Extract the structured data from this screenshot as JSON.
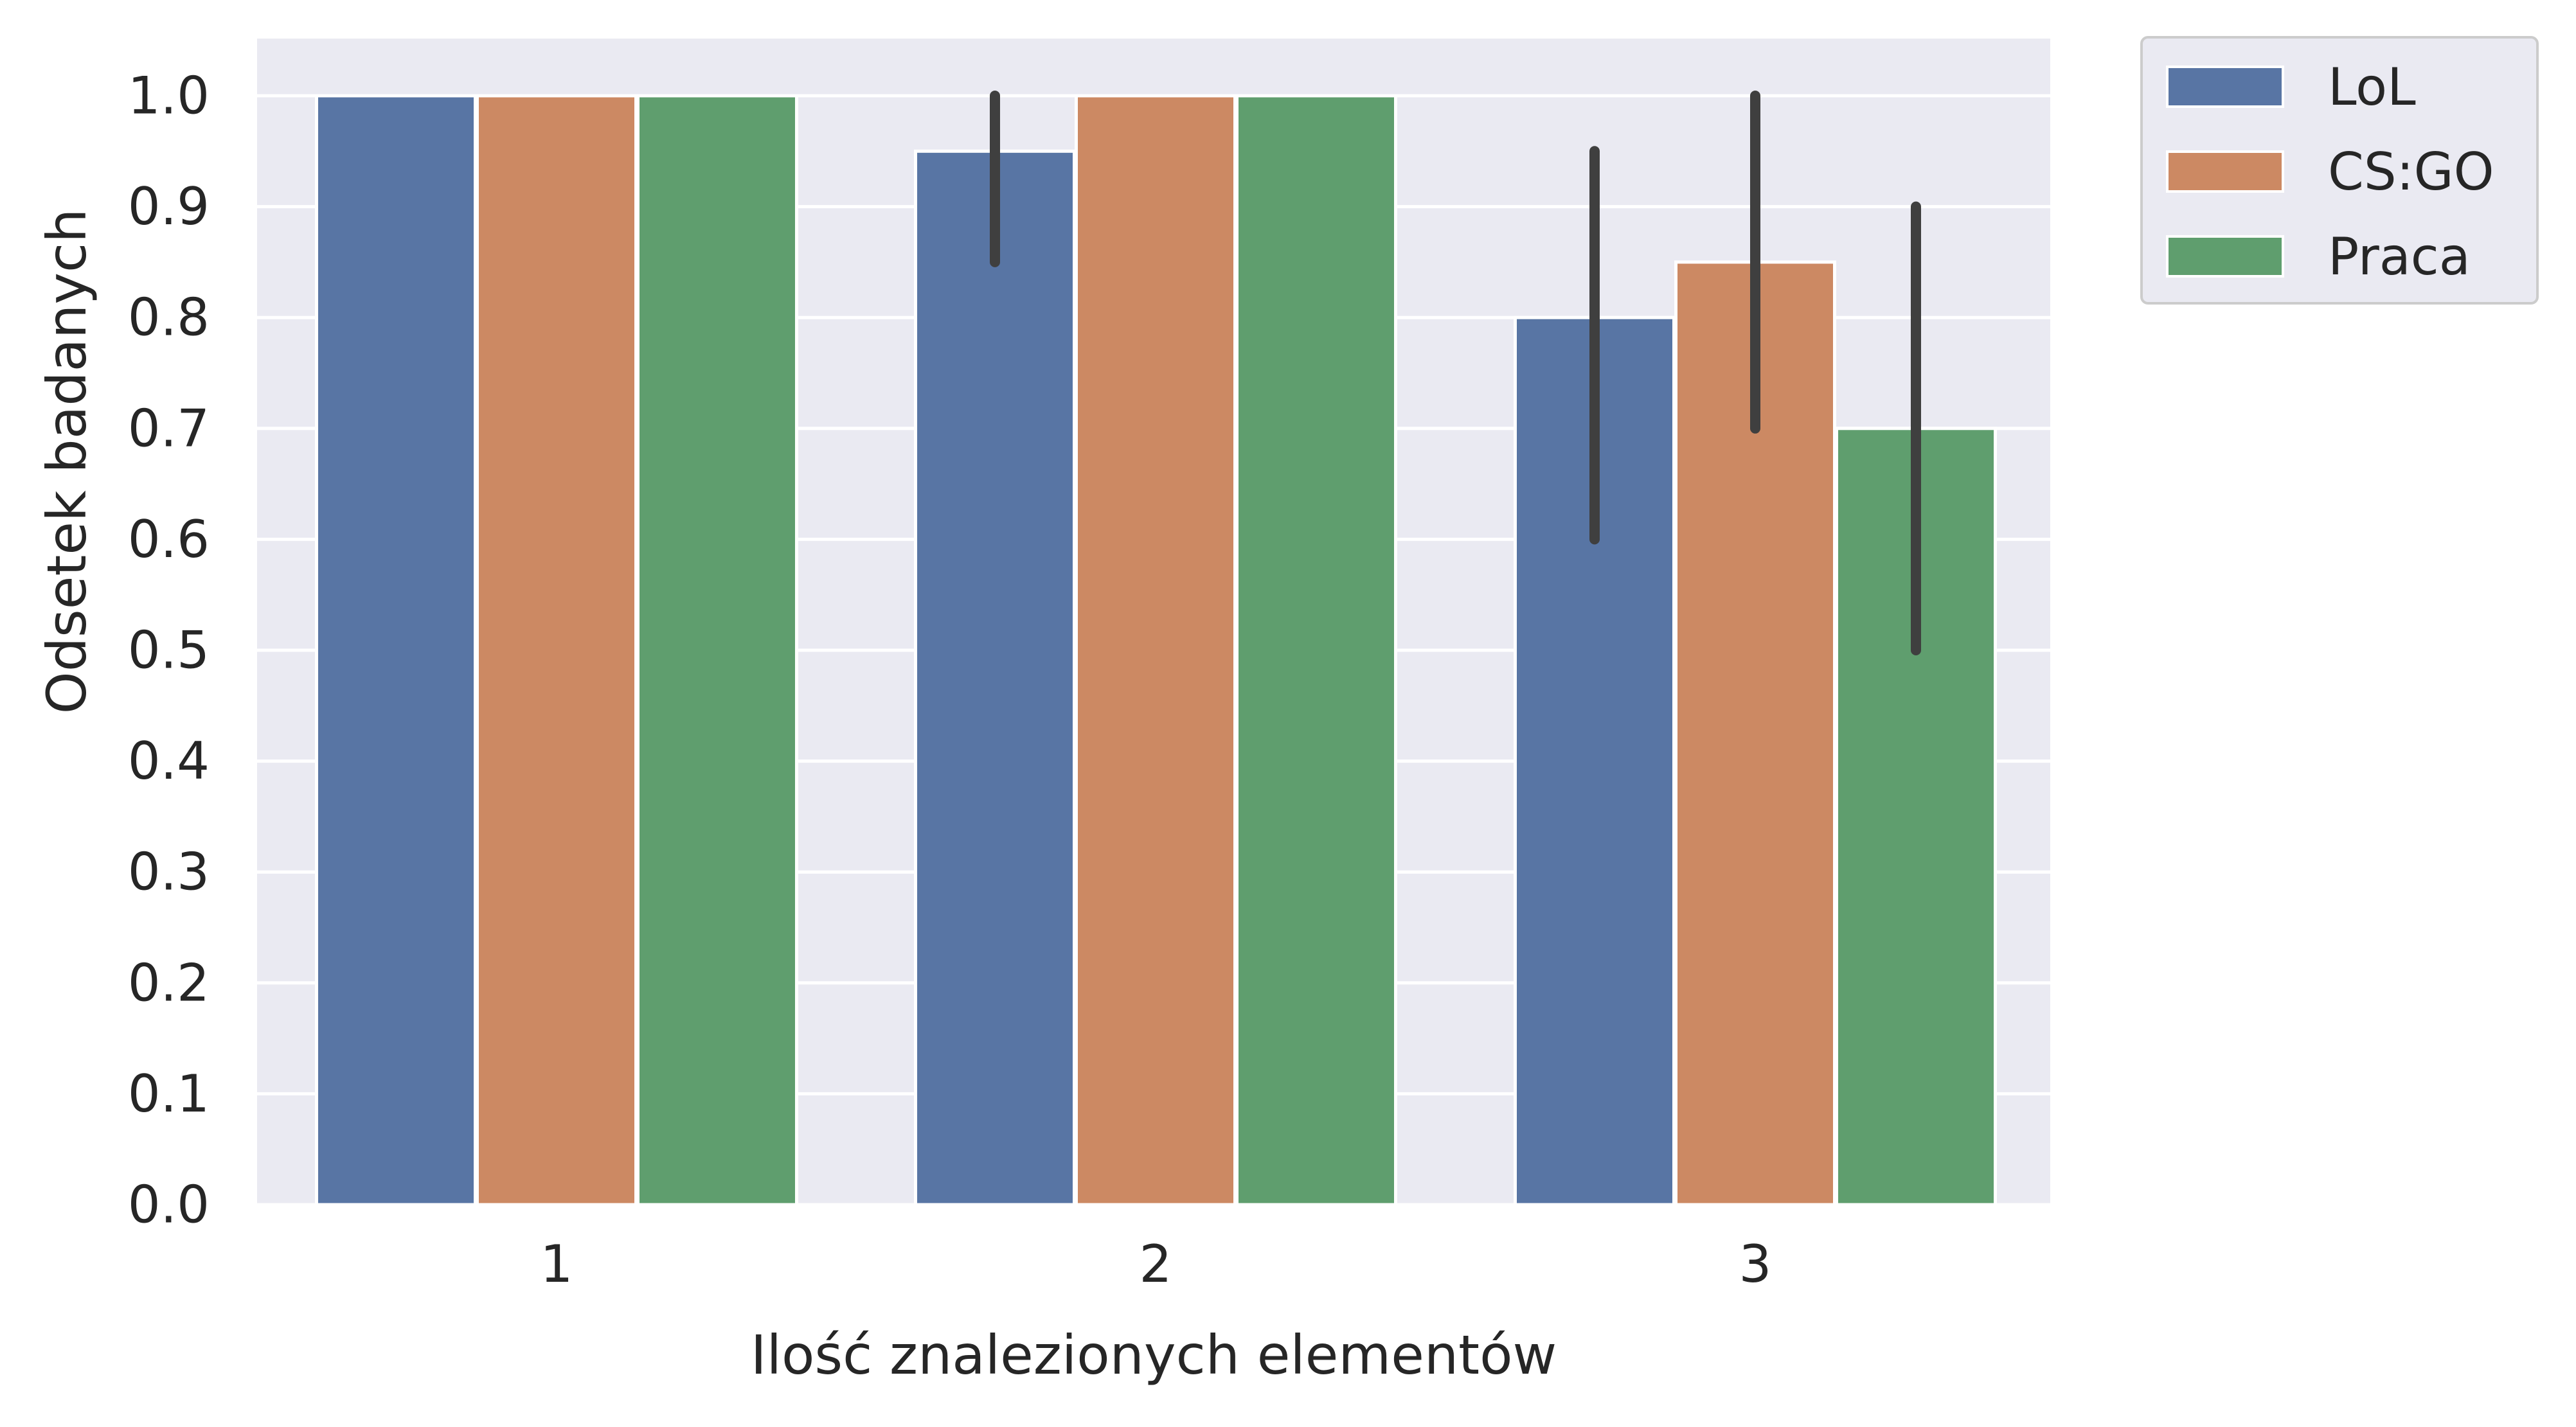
{
  "chart_data": {
    "type": "bar",
    "categories": [
      "1",
      "2",
      "3"
    ],
    "xlabel": "Ilość znalezionych elementów",
    "ylabel": "Odsetek badanych",
    "ylim": [
      0.0,
      1.05
    ],
    "yticks": [
      "0.0",
      "0.1",
      "0.2",
      "0.3",
      "0.4",
      "0.5",
      "0.6",
      "0.7",
      "0.8",
      "0.9",
      "1.0"
    ],
    "grid": true,
    "legend_position": "outside top-right",
    "series": [
      {
        "name": "LoL",
        "color": "#5875a4",
        "values": [
          1.0,
          0.95,
          0.8
        ],
        "error_bars": [
          null,
          [
            0.85,
            1.0
          ],
          [
            0.6,
            0.95
          ]
        ]
      },
      {
        "name": "CS:GO",
        "color": "#cc8963",
        "values": [
          1.0,
          1.0,
          0.85
        ],
        "error_bars": [
          null,
          null,
          [
            0.7,
            1.0
          ]
        ]
      },
      {
        "name": "Praca",
        "color": "#5f9e6e",
        "values": [
          1.0,
          1.0,
          0.7
        ],
        "error_bars": [
          null,
          null,
          [
            0.5,
            0.9
          ]
        ]
      }
    ]
  }
}
